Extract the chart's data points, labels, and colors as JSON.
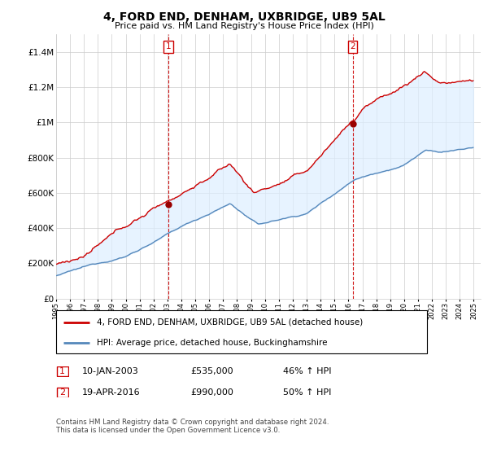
{
  "title": "4, FORD END, DENHAM, UXBRIDGE, UB9 5AL",
  "subtitle": "Price paid vs. HM Land Registry's House Price Index (HPI)",
  "legend_line1": "4, FORD END, DENHAM, UXBRIDGE, UB9 5AL (detached house)",
  "legend_line2": "HPI: Average price, detached house, Buckinghamshire",
  "footnote": "Contains HM Land Registry data © Crown copyright and database right 2024.\nThis data is licensed under the Open Government Licence v3.0.",
  "transaction1_date": "10-JAN-2003",
  "transaction1_price": "£535,000",
  "transaction1_hpi": "46% ↑ HPI",
  "transaction1_year": 2003.05,
  "transaction1_value": 535000,
  "transaction2_date": "19-APR-2016",
  "transaction2_price": "£990,000",
  "transaction2_hpi": "50% ↑ HPI",
  "transaction2_year": 2016.3,
  "transaction2_value": 990000,
  "price_color": "#cc0000",
  "hpi_color": "#5588bb",
  "fill_color": "#ddeeff",
  "marker_color": "#990000",
  "vline_color": "#cc0000",
  "ylim": [
    0,
    1500000
  ],
  "yticks": [
    0,
    200000,
    400000,
    600000,
    800000,
    1000000,
    1200000,
    1400000
  ],
  "grid_color": "#cccccc",
  "background_color": "#ffffff",
  "plot_bg_color": "#ffffff"
}
